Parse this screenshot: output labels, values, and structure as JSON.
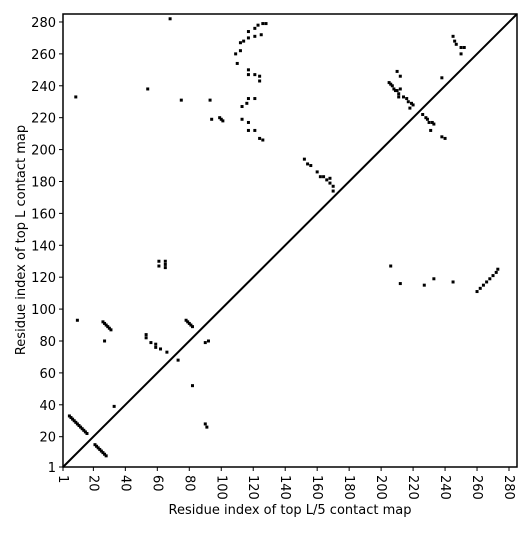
{
  "chart_data": {
    "type": "scatter",
    "xlabel": "Residue index of top L/5 contact map",
    "ylabel": "Residue index of top L contact map",
    "xlim": [
      1,
      285
    ],
    "ylim": [
      1,
      285
    ],
    "xticks": [
      1,
      20,
      40,
      60,
      80,
      100,
      120,
      140,
      160,
      180,
      200,
      220,
      240,
      260,
      280
    ],
    "yticks": [
      1,
      20,
      40,
      60,
      80,
      100,
      120,
      140,
      160,
      180,
      200,
      220,
      240,
      260,
      280
    ],
    "color": "#000000",
    "x": [
      5,
      6,
      7,
      8,
      9,
      10,
      11,
      12,
      13,
      14,
      15,
      16,
      21,
      22,
      23,
      24,
      25,
      26,
      27,
      28,
      26,
      27,
      28,
      29,
      30,
      31,
      27,
      33,
      9,
      10,
      53,
      53,
      56,
      59,
      59,
      62,
      66,
      78,
      79,
      80,
      81,
      82,
      82,
      73,
      90,
      92,
      90,
      91,
      61,
      61,
      65,
      65,
      65,
      54,
      68,
      75,
      93,
      94,
      99,
      100,
      101,
      110,
      112,
      112,
      114,
      117,
      117,
      121,
      121,
      123,
      125,
      126,
      128,
      117,
      117,
      121,
      124,
      124,
      113,
      116,
      117,
      121,
      113,
      117,
      117,
      121,
      124,
      126,
      109,
      152,
      154,
      156,
      160,
      162,
      164,
      166,
      168,
      168,
      170,
      170,
      205,
      206,
      207,
      208,
      209,
      210,
      211,
      211,
      212,
      210,
      214,
      216,
      217,
      219,
      220,
      218,
      212,
      226,
      228,
      229,
      230,
      232,
      233,
      231,
      238,
      240,
      238,
      245,
      246,
      247,
      250,
      252,
      250,
      206,
      212,
      227,
      233,
      245,
      260,
      262,
      264,
      266,
      268,
      270,
      272,
      273
    ],
    "values": [
      33,
      32,
      31,
      30,
      29,
      28,
      27,
      26,
      25,
      24,
      23,
      22,
      15,
      14,
      13,
      12,
      11,
      10,
      9,
      8,
      92,
      91,
      90,
      89,
      88,
      87,
      80,
      39,
      233,
      93,
      84,
      82,
      79,
      78,
      76,
      75,
      73,
      93,
      92,
      91,
      90,
      89,
      52,
      68,
      79,
      80,
      28,
      26,
      130,
      127,
      130,
      128,
      126,
      238,
      282,
      231,
      231,
      219,
      220,
      219,
      218,
      254,
      262,
      267,
      268,
      270,
      274,
      271,
      276,
      278,
      272,
      279,
      279,
      250,
      247,
      247,
      246,
      243,
      227,
      229,
      232,
      232,
      219,
      217,
      212,
      212,
      207,
      206,
      260,
      194,
      191,
      190,
      186,
      183,
      183,
      181,
      182,
      179,
      177,
      174,
      242,
      241,
      240,
      238,
      237,
      237,
      235,
      233,
      246,
      249,
      233,
      232,
      230,
      229,
      228,
      226,
      238,
      222,
      220,
      219,
      217,
      217,
      216,
      212,
      208,
      207,
      245,
      271,
      268,
      266,
      264,
      264,
      260,
      127,
      116,
      115,
      119,
      117,
      111,
      113,
      115,
      117,
      119,
      121,
      123,
      125
    ]
  }
}
